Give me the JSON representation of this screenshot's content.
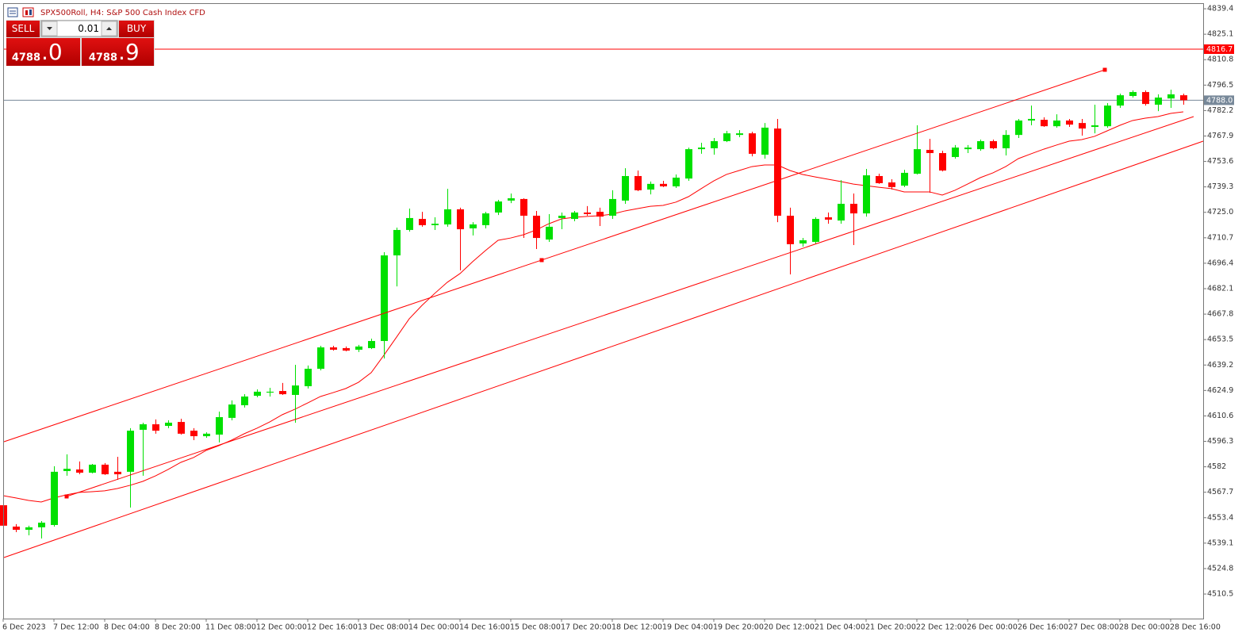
{
  "header": {
    "symbol_title": "SPX500Roll, H4:  S&P 500 Cash Index CFD"
  },
  "trade_panel": {
    "sell_label": "SELL",
    "buy_label": "BUY",
    "volume": "0.01",
    "sell_price_main": "4788",
    "sell_price_frac": ".0",
    "buy_price_main": "4788",
    "buy_price_frac": ".9"
  },
  "chart_data": {
    "type": "candlestick",
    "categories": [
      "6 Dec 2023",
      null,
      null,
      null,
      "7 Dec 12:00",
      null,
      null,
      null,
      "8 Dec 04:00",
      null,
      null,
      null,
      "8 Dec 20:00",
      null,
      null,
      null,
      "11 Dec 08:00",
      null,
      null,
      null,
      "12 Dec 00:00",
      null,
      null,
      null,
      "12 Dec 16:00",
      null,
      null,
      null,
      "13 Dec 08:00",
      null,
      null,
      null,
      "14 Dec 00:00",
      null,
      null,
      null,
      "14 Dec 16:00",
      null,
      null,
      null,
      "15 Dec 08:00",
      null,
      null,
      null,
      "17 Dec 20:00",
      null,
      null,
      null,
      "18 Dec 12:00",
      null,
      null,
      null,
      "19 Dec 04:00",
      null,
      null,
      null,
      "19 Dec 20:00",
      null,
      null,
      null,
      "20 Dec 12:00",
      null,
      null,
      null,
      "21 Dec 04:00",
      null,
      null,
      null,
      "21 Dec 20:00",
      null,
      null,
      null,
      "22 Dec 12:00",
      null,
      null,
      null,
      "26 Dec 00:00",
      null,
      null,
      null,
      "26 Dec 16:00",
      null,
      null,
      null,
      "27 Dec 08:00",
      null,
      null,
      null,
      "28 Dec 00:00",
      null,
      null,
      null,
      "28 Dec 16:00",
      null
    ],
    "open": [
      4560.4,
      4548.4,
      4546.6,
      4548.0,
      4549.3,
      4579.6,
      4580.5,
      4578.7,
      4583.2,
      4579.2,
      4579.2,
      4602.8,
      4605.9,
      4605.0,
      4607.2,
      4602.3,
      4599.2,
      4600.1,
      4609.5,
      4616.6,
      4621.9,
      4623.7,
      4624.6,
      4622.4,
      4627.3,
      4637.1,
      4649.1,
      4648.7,
      4647.8,
      4648.7,
      4652.7,
      4700.8,
      4715.1,
      4721.3,
      4717.8,
      4718.2,
      4726.7,
      4716.0,
      4717.8,
      4724.9,
      4731.6,
      4732.5,
      4723.1,
      4709.7,
      4721.8,
      4721.3,
      4724.9,
      4725.3,
      4723.1,
      4731.6,
      4745.4,
      4737.8,
      4741.0,
      4739.6,
      4744.0,
      4760.5,
      4761.0,
      4765.0,
      4768.5,
      4769.4,
      4757.4,
      4772.1,
      4723.1,
      4707.5,
      4708.4,
      4722.2,
      4720.4,
      4729.8,
      4724.4,
      4745.4,
      4741.8,
      4740.0,
      4746.7,
      4760.1,
      4758.3,
      4756.1,
      4760.5,
      4760.5,
      4765.0,
      4761.0,
      4768.5,
      4776.6,
      4777.0,
      4773.4,
      4776.6,
      4775.2,
      4773.0,
      4773.4,
      4785.0,
      4790.4,
      4792.6,
      4785.5,
      4789.0,
      4790.8
    ],
    "high": [
      4560.4,
      4549.8,
      4548.9,
      4551.5,
      4582.3,
      4589.0,
      4585.0,
      4583.6,
      4584.1,
      4587.6,
      4603.7,
      4606.8,
      4608.6,
      4608.1,
      4609.0,
      4603.7,
      4601.4,
      4613.0,
      4619.3,
      4622.8,
      4625.5,
      4626.4,
      4629.1,
      4639.3,
      4638.9,
      4650.0,
      4650.0,
      4649.6,
      4650.5,
      4654.0,
      4702.6,
      4716.4,
      4727.1,
      4725.3,
      4722.2,
      4738.2,
      4727.6,
      4719.5,
      4725.3,
      4732.0,
      4735.6,
      4732.9,
      4725.8,
      4724.0,
      4724.9,
      4725.8,
      4728.5,
      4727.6,
      4737.4,
      4749.8,
      4748.5,
      4742.3,
      4742.7,
      4746.3,
      4761.4,
      4764.1,
      4766.8,
      4770.8,
      4771.2,
      4770.3,
      4775.2,
      4777.5,
      4727.6,
      4710.6,
      4722.2,
      4724.9,
      4743.1,
      4735.6,
      4749.4,
      4746.7,
      4743.6,
      4748.9,
      4773.9,
      4766.3,
      4759.6,
      4762.8,
      4762.8,
      4765.9,
      4765.9,
      4771.2,
      4777.5,
      4785.0,
      4778.4,
      4780.1,
      4777.5,
      4777.5,
      4785.5,
      4786.4,
      4791.7,
      4793.5,
      4793.5,
      4791.3,
      4793.9,
      4791.7
    ],
    "low": [
      4548.9,
      4545.3,
      4543.5,
      4541.7,
      4548.4,
      4577.0,
      4577.8,
      4578.3,
      4577.4,
      4574.7,
      4559.1,
      4577.0,
      4600.6,
      4603.7,
      4600.1,
      4597.0,
      4598.3,
      4595.7,
      4608.1,
      4615.3,
      4621.1,
      4621.5,
      4622.4,
      4606.8,
      4626.0,
      4636.2,
      4647.3,
      4646.9,
      4646.5,
      4648.2,
      4642.9,
      4683.4,
      4714.2,
      4716.9,
      4715.1,
      4716.9,
      4692.4,
      4712.0,
      4716.0,
      4723.5,
      4730.2,
      4710.6,
      4704.4,
      4708.4,
      4715.5,
      4720.0,
      4723.1,
      4717.3,
      4721.3,
      4729.8,
      4736.9,
      4735.1,
      4739.2,
      4738.7,
      4742.7,
      4757.9,
      4757.4,
      4764.5,
      4767.2,
      4756.5,
      4755.2,
      4719.5,
      4690.1,
      4705.7,
      4707.1,
      4718.6,
      4718.6,
      4706.6,
      4722.6,
      4741.0,
      4737.8,
      4739.2,
      4746.3,
      4736.0,
      4748.0,
      4755.2,
      4758.3,
      4759.6,
      4760.5,
      4757.0,
      4766.8,
      4773.9,
      4773.0,
      4772.6,
      4773.0,
      4768.1,
      4769.4,
      4772.6,
      4783.7,
      4789.5,
      4785.0,
      4781.9,
      4783.7,
      4785.5
    ],
    "close": [
      4548.9,
      4546.6,
      4548.0,
      4550.6,
      4579.2,
      4580.9,
      4578.7,
      4583.2,
      4577.8,
      4577.8,
      4602.3,
      4605.9,
      4602.3,
      4606.8,
      4600.6,
      4599.2,
      4600.6,
      4609.9,
      4617.0,
      4621.5,
      4624.2,
      4624.2,
      4622.8,
      4627.7,
      4637.1,
      4649.1,
      4647.8,
      4647.3,
      4649.6,
      4652.7,
      4700.8,
      4715.1,
      4721.8,
      4717.8,
      4718.6,
      4726.7,
      4715.5,
      4718.2,
      4724.4,
      4731.1,
      4732.9,
      4723.1,
      4710.6,
      4716.9,
      4723.1,
      4724.9,
      4724.0,
      4722.6,
      4732.5,
      4745.4,
      4737.4,
      4741.0,
      4739.6,
      4744.5,
      4760.5,
      4761.4,
      4765.0,
      4769.4,
      4769.4,
      4757.9,
      4772.6,
      4723.1,
      4707.1,
      4709.3,
      4721.3,
      4720.9,
      4729.8,
      4724.4,
      4745.8,
      4741.4,
      4739.2,
      4747.2,
      4760.5,
      4758.3,
      4748.5,
      4761.4,
      4761.4,
      4765.0,
      4761.0,
      4768.5,
      4776.6,
      4777.5,
      4773.4,
      4776.6,
      4774.3,
      4772.1,
      4773.9,
      4785.0,
      4790.8,
      4792.6,
      4785.9,
      4789.5,
      4791.3,
      4788.0
    ],
    "up_color": "#00e000",
    "down_color": "#ff0000",
    "moving_average": {
      "color": "#ff0000",
      "values": [
        4565.8,
        4564.5,
        4563.1,
        4562.2,
        4564.5,
        4566.3,
        4567.6,
        4568.0,
        4568.5,
        4569.8,
        4571.6,
        4573.8,
        4576.9,
        4580.5,
        4584.5,
        4587.2,
        4591.2,
        4593.9,
        4597.0,
        4600.6,
        4603.7,
        4607.2,
        4611.3,
        4614.4,
        4617.9,
        4621.5,
        4623.7,
        4626.0,
        4629.5,
        4634.9,
        4644.7,
        4654.9,
        4665.2,
        4672.7,
        4679.4,
        4685.7,
        4690.6,
        4697.3,
        4703.5,
        4709.3,
        4710.6,
        4712.4,
        4715.1,
        4718.6,
        4721.3,
        4722.2,
        4722.7,
        4723.1,
        4724.0,
        4725.8,
        4727.1,
        4728.4,
        4728.9,
        4730.7,
        4733.8,
        4738.3,
        4742.7,
        4746.3,
        4748.5,
        4750.7,
        4751.6,
        4751.6,
        4748.5,
        4746.3,
        4744.9,
        4743.6,
        4742.3,
        4740.9,
        4740.0,
        4739.1,
        4738.3,
        4736.5,
        4736.5,
        4736.5,
        4734.7,
        4737.4,
        4740.9,
        4744.5,
        4747.2,
        4750.7,
        4755.2,
        4757.9,
        4760.5,
        4762.8,
        4765.0,
        4765.9,
        4767.7,
        4770.8,
        4773.9,
        4776.6,
        4777.9,
        4778.8,
        4780.6,
        4781.5
      ]
    },
    "ylim": [
      4496.7,
      4842.1
    ],
    "yticks": [
      4839.4,
      4825.1,
      4810.8,
      4796.5,
      4782.2,
      4767.9,
      4753.6,
      4739.3,
      {
        "value": 4725,
        "label": "4725.0"
      },
      4710.7,
      4696.4,
      4682.1,
      4667.8,
      4653.5,
      4639.2,
      4624.9,
      4610.6,
      4596.3,
      4582,
      4567.7,
      4553.4,
      4539.1,
      4524.8,
      4510.5
    ],
    "price_lines": [
      {
        "value": 4816.7,
        "color": "#ff0000"
      },
      {
        "value": 4788,
        "label": "4788.0",
        "color": "#778899"
      }
    ],
    "grid": false
  }
}
